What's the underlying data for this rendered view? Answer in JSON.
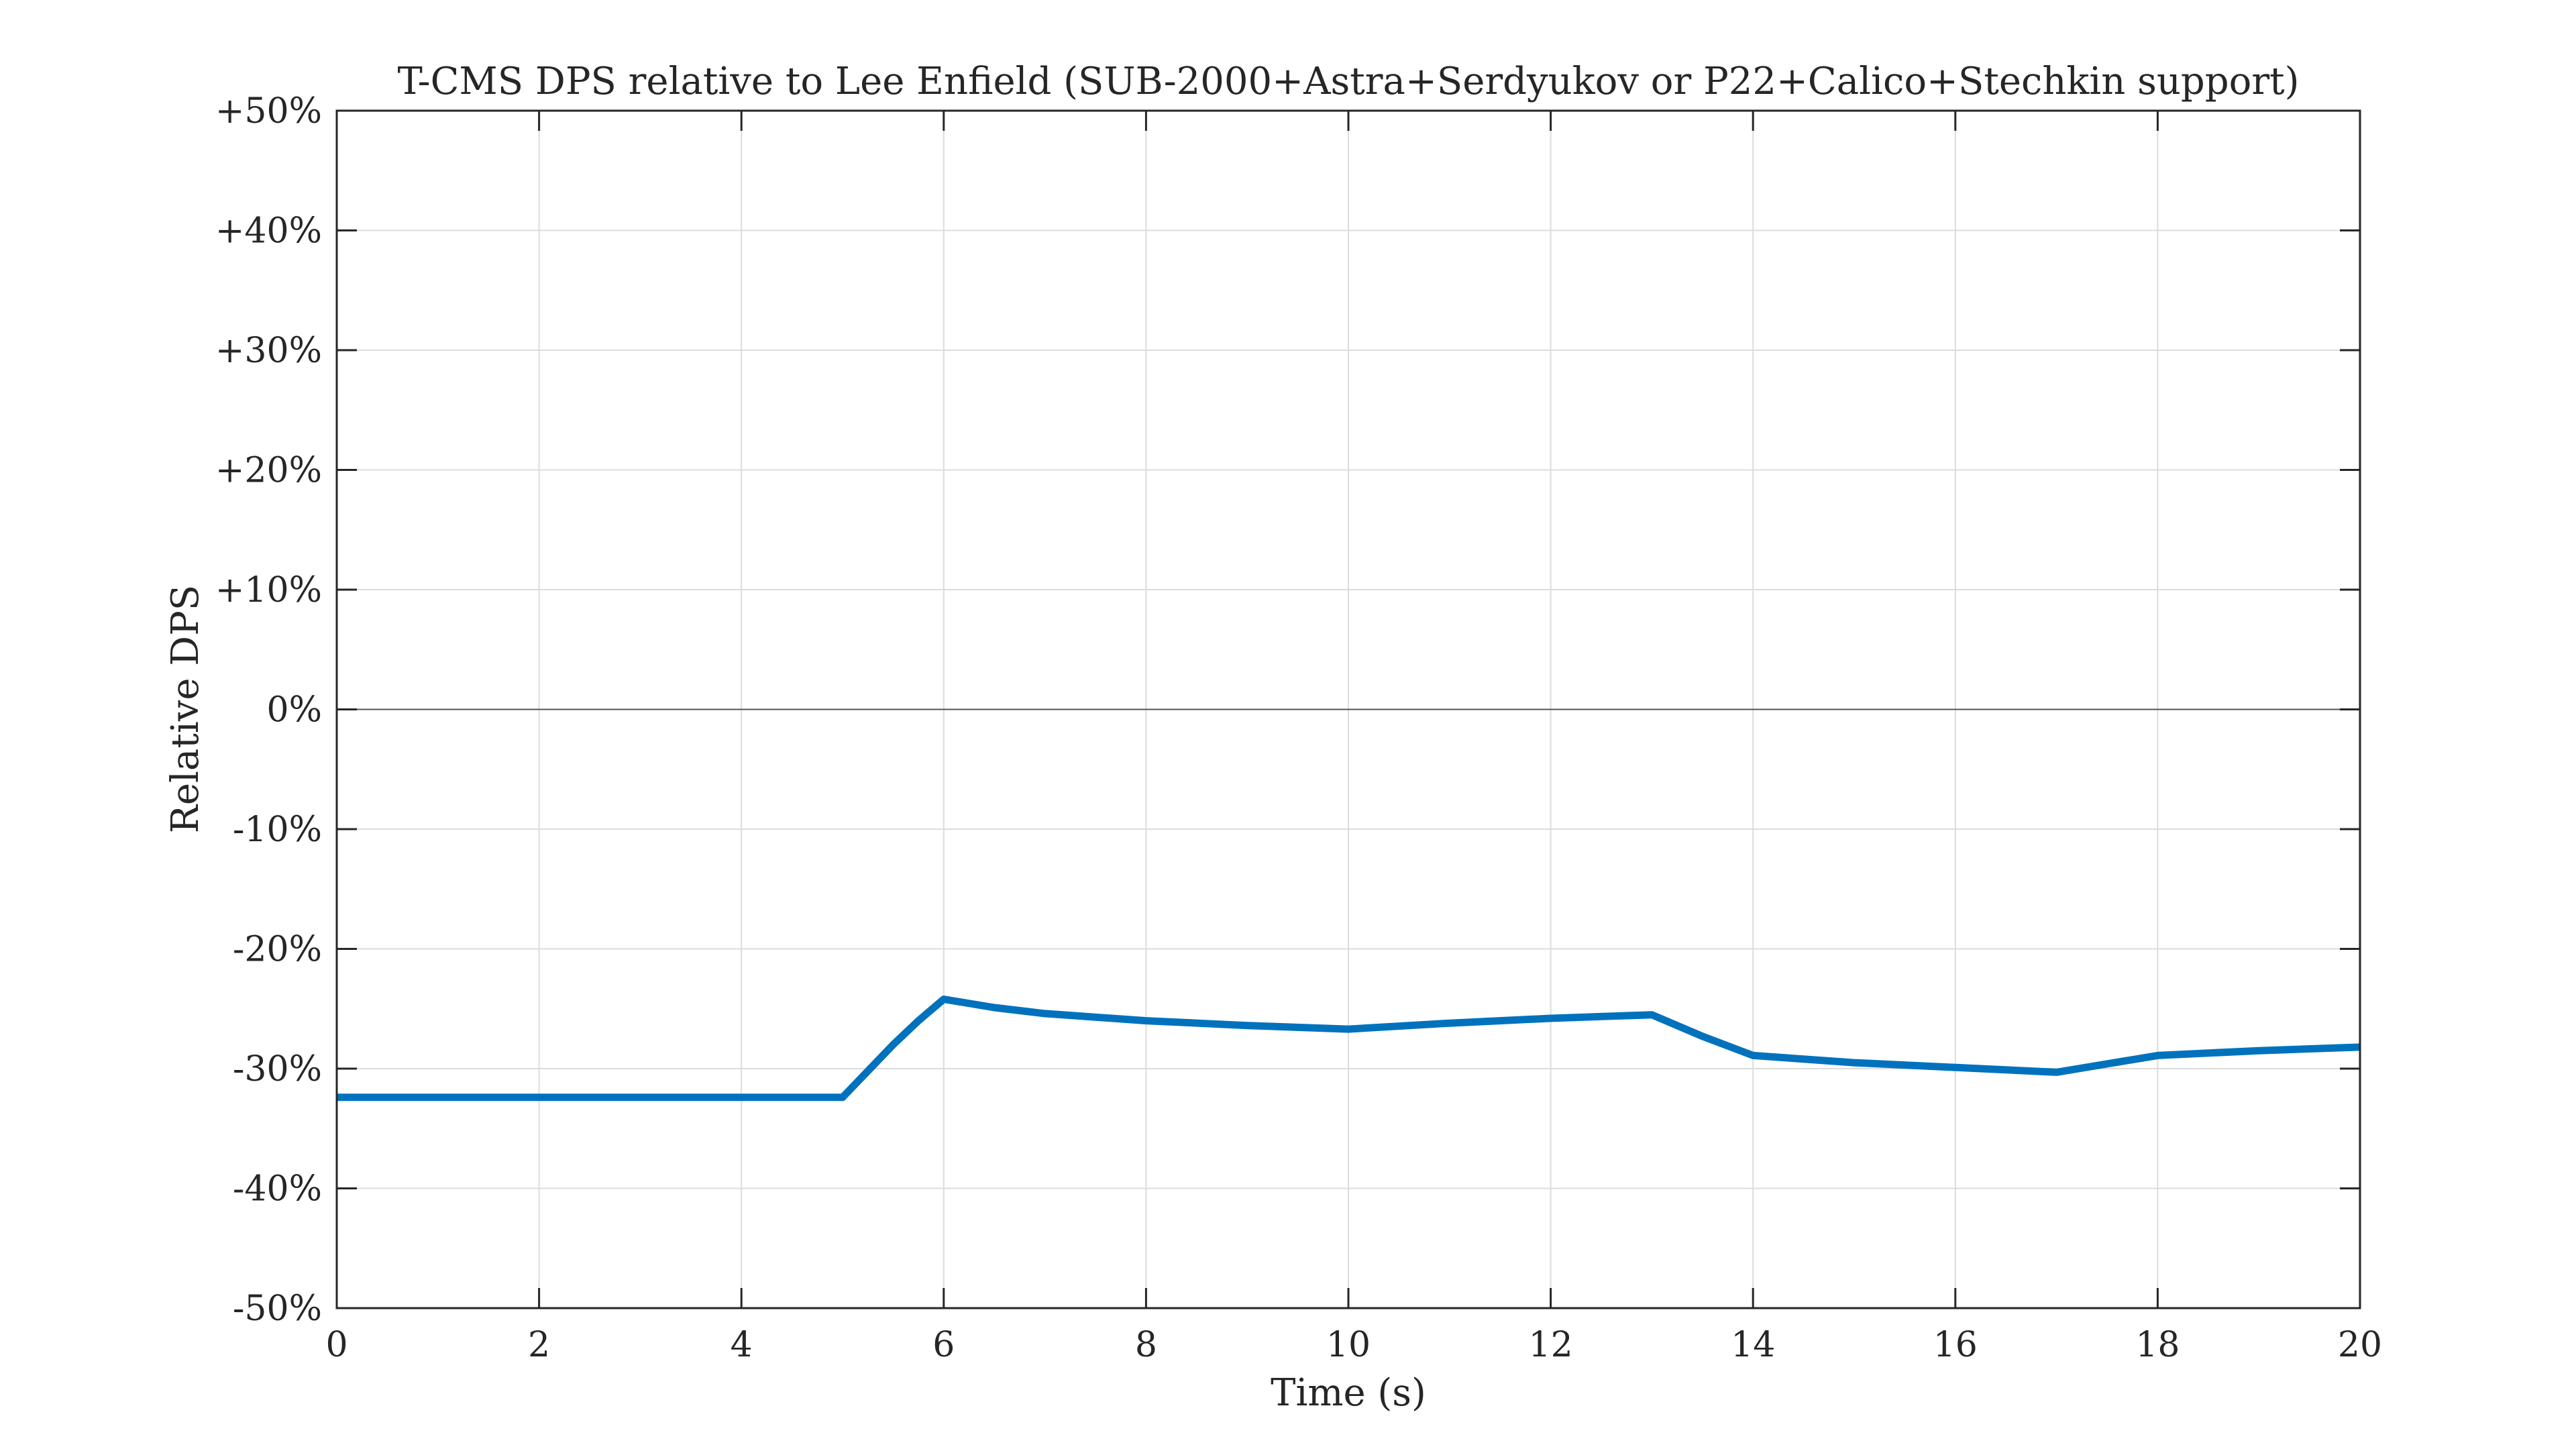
{
  "chart_data": {
    "type": "line",
    "title": "T-CMS DPS relative to Lee Enfield (SUB-2000+Astra+Serdyukov or P22+Calico+Stechkin support)",
    "xlabel": "Time (s)",
    "ylabel": "Relative DPS",
    "xlim": [
      0,
      20
    ],
    "ylim": [
      -50,
      50
    ],
    "x_ticks": [
      0,
      2,
      4,
      6,
      8,
      10,
      12,
      14,
      16,
      18,
      20
    ],
    "x_tick_labels": [
      "0",
      "2",
      "4",
      "6",
      "8",
      "10",
      "12",
      "14",
      "16",
      "18",
      "20"
    ],
    "y_ticks": [
      50,
      40,
      30,
      20,
      10,
      0,
      -10,
      -20,
      -30,
      -40,
      -50
    ],
    "y_tick_labels": [
      "+50%",
      "+40%",
      "+30%",
      "+20%",
      "+10%",
      "0%",
      "-10%",
      "-20%",
      "-30%",
      "-40%",
      "-50%"
    ],
    "grid": true,
    "zero_line": true,
    "series": [
      {
        "color": "#0072BD",
        "x": [
          0,
          1,
          2,
          3,
          4,
          5,
          5.25,
          5.5,
          5.75,
          6,
          6.5,
          7,
          8,
          9,
          10,
          11,
          12,
          13,
          13.5,
          14,
          15,
          16,
          17,
          18,
          19,
          20
        ],
        "y": [
          -32.4,
          -32.4,
          -32.4,
          -32.4,
          -32.4,
          -32.4,
          -30.2,
          -28.0,
          -26.0,
          -24.2,
          -24.9,
          -25.4,
          -26.0,
          -26.4,
          -26.7,
          -26.2,
          -25.8,
          -25.5,
          -27.3,
          -28.9,
          -29.5,
          -29.9,
          -30.3,
          -28.9,
          -28.5,
          -28.2
        ]
      }
    ]
  }
}
